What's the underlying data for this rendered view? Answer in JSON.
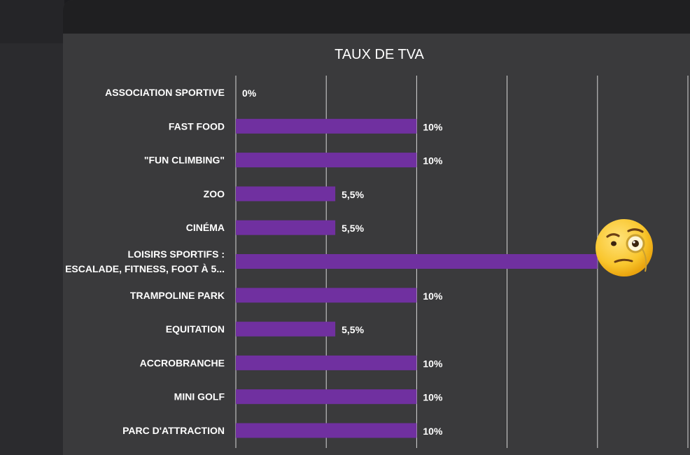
{
  "chart_data": {
    "type": "bar",
    "orientation": "horizontal",
    "title": "TAUX DE TVA",
    "categories": [
      "ASSOCIATION SPORTIVE",
      "FAST FOOD",
      "\"FUN CLIMBING\"",
      "ZOO",
      "CINÉMA",
      [
        "LOISIRS SPORTIFS :",
        "ESCALADE, FITNESS, FOOT À 5..."
      ],
      "TRAMPOLINE PARK",
      "EQUITATION",
      "ACCROBRANCHE",
      "MINI GOLF",
      "PARC D'ATTRACTION"
    ],
    "values": [
      0,
      10,
      10,
      5.5,
      5.5,
      20,
      10,
      5.5,
      10,
      10,
      10
    ],
    "data_labels": [
      "0%",
      "10%",
      "10%",
      "5,5%",
      "5,5%",
      "20%",
      "10%",
      "5,5%",
      "10%",
      "10%",
      "10%"
    ],
    "xlim": [
      0,
      25
    ],
    "grid": true,
    "legend": "none",
    "bar_color": "#7030a0"
  },
  "decoration": {
    "emoji": "face-with-monocle"
  }
}
